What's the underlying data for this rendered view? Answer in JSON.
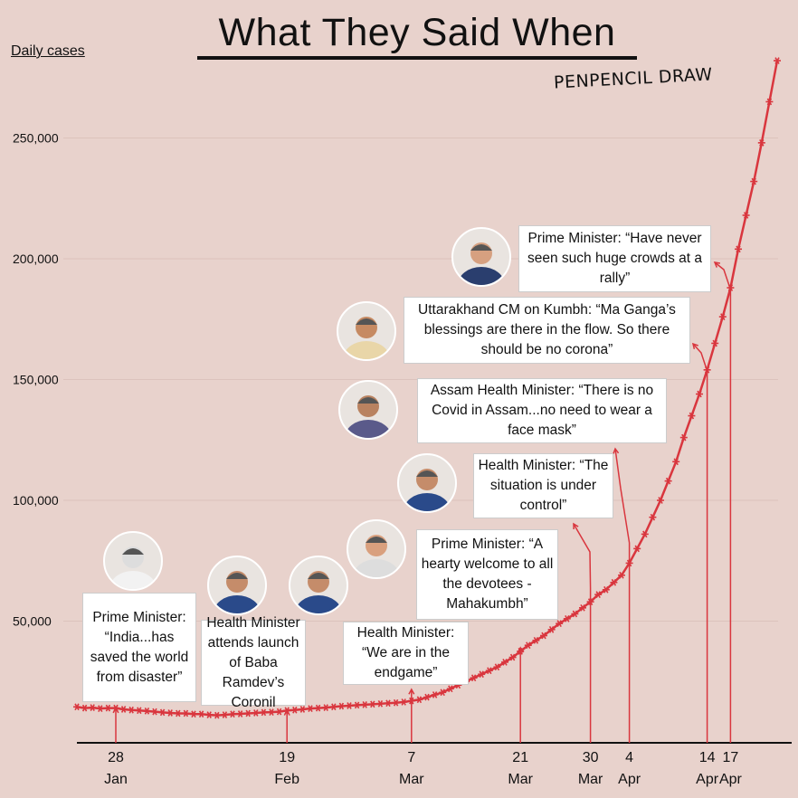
{
  "title": "What They Said When",
  "signature": "PENPENCIL DRAW",
  "colors": {
    "background": "#e8d2cc",
    "line": "#d9363e",
    "axis": "#111111"
  },
  "chart_data": {
    "type": "line",
    "title": "What They Said When",
    "ylabel": "Daily cases",
    "xlabel": "",
    "x_start": "2021-01-23",
    "x_end": "2021-04-23",
    "ylim": [
      0,
      280000
    ],
    "yticks": [
      50000,
      100000,
      150000,
      200000,
      250000
    ],
    "ytick_labels": [
      "50,000",
      "100,000",
      "150,000",
      "200,000",
      "250,000"
    ],
    "xticks": [
      {
        "day": 5,
        "day_label": "28",
        "month_label": "Jan"
      },
      {
        "day": 27,
        "day_label": "19",
        "month_label": "Feb"
      },
      {
        "day": 43,
        "day_label": "7",
        "month_label": "Mar"
      },
      {
        "day": 57,
        "day_label": "21",
        "month_label": "Mar"
      },
      {
        "day": 66,
        "day_label": "30",
        "month_label": "Mar"
      },
      {
        "day": 71,
        "day_label": "4",
        "month_label": "Apr"
      },
      {
        "day": 81,
        "day_label": "14",
        "month_label": "Apr"
      },
      {
        "day": 84,
        "day_label": "17",
        "month_label": "Apr"
      }
    ],
    "values_thousands": [
      14.5,
      14,
      14.2,
      13.8,
      14,
      14,
      13.5,
      13.2,
      13,
      12.8,
      12.5,
      12.2,
      12,
      11.8,
      11.8,
      11.5,
      11.5,
      11.2,
      11,
      11.2,
      11.5,
      11.6,
      11.8,
      12,
      12.2,
      12.3,
      12.5,
      13,
      13.2,
      13.5,
      13.8,
      14,
      14.2,
      14.5,
      14.8,
      15,
      15.2,
      15.4,
      15.6,
      15.8,
      16,
      16.2,
      16.5,
      17,
      17.5,
      18.5,
      19.5,
      20.5,
      22,
      23.5,
      25,
      26.5,
      28,
      29.5,
      31,
      33,
      35,
      37.5,
      40,
      42,
      44,
      46.5,
      49,
      51,
      53,
      55.5,
      58,
      61,
      63,
      66,
      69,
      74,
      80,
      86,
      93,
      100,
      108,
      116,
      126,
      135,
      144,
      154,
      165,
      176,
      188,
      204,
      218,
      232,
      248,
      265,
      282
    ],
    "annotations": [
      {
        "date": "28 Jan",
        "text": "Prime Minister: “India...has saved the world from disaster”"
      },
      {
        "date": "19 Feb",
        "text": "Health Minister attends launch of Baba Ramdev’s Coronil"
      },
      {
        "date": "7 Mar",
        "text": "Health Minister: “We are in the endgame”"
      },
      {
        "date": "21 Mar",
        "text": "Prime Minister: “A hearty welcome to all the devotees - Mahakumbh”"
      },
      {
        "date": "30 Mar",
        "text": "Health Minister: “The situation is under control”"
      },
      {
        "date": "4 Apr",
        "text": "Assam Health Minister: “There is no Covid in Assam...no need to wear a face mask”"
      },
      {
        "date": "14 Apr",
        "text": "Uttarakhand CM on Kumbh: “Ma Ganga’s blessings are there in the flow. So there should be no corona”"
      },
      {
        "date": "17 Apr",
        "text": "Prime Minister: “Have never seen such huge crowds at a rally”"
      }
    ]
  }
}
